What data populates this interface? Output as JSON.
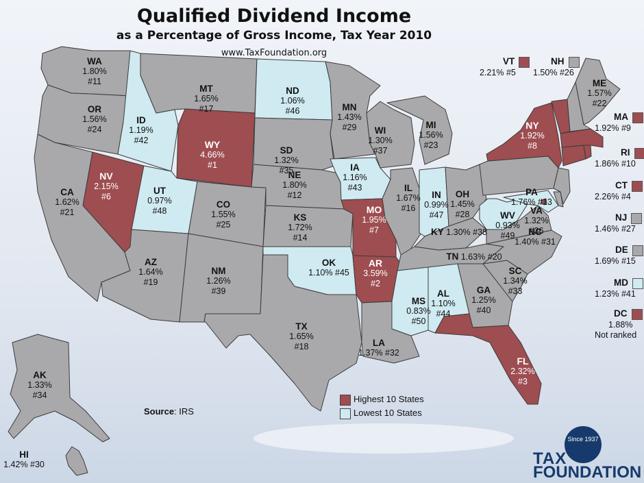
{
  "title": "Qualified Dividend Income",
  "subtitle": "as a Percentage of Gross Income, Tax Year 2010",
  "website": "www.TaxFoundation.org",
  "colors": {
    "highest": "#9e4d51",
    "lowest": "#cfeaf0",
    "neutral": "#a9a9ab",
    "border": "#3b3b3b"
  },
  "legend": {
    "highest": "Highest 10 States",
    "lowest": "Lowest 10 States"
  },
  "source": {
    "label": "Source",
    "value": ": IRS"
  },
  "logo": {
    "line1": "TAX",
    "line2": "FOUNDATION",
    "seal": "Since 1937"
  },
  "states": {
    "WA": {
      "abbr": "WA",
      "pct": "1.80%",
      "rank": "#11",
      "group": "neutral"
    },
    "OR": {
      "abbr": "OR",
      "pct": "1.56%",
      "rank": "#24",
      "group": "neutral"
    },
    "CA": {
      "abbr": "CA",
      "pct": "1.62%",
      "rank": "#21",
      "group": "neutral"
    },
    "NV": {
      "abbr": "NV",
      "pct": "2.15%",
      "rank": "#6",
      "group": "highest"
    },
    "ID": {
      "abbr": "ID",
      "pct": "1.19%",
      "rank": "#42",
      "group": "lowest"
    },
    "MT": {
      "abbr": "MT",
      "pct": "1.65%",
      "rank": "#17",
      "group": "neutral"
    },
    "WY": {
      "abbr": "WY",
      "pct": "4.66%",
      "rank": "#1",
      "group": "highest"
    },
    "UT": {
      "abbr": "UT",
      "pct": "0.97%",
      "rank": "#48",
      "group": "lowest"
    },
    "AZ": {
      "abbr": "AZ",
      "pct": "1.64%",
      "rank": "#19",
      "group": "neutral"
    },
    "CO": {
      "abbr": "CO",
      "pct": "1.55%",
      "rank": "#25",
      "group": "neutral"
    },
    "NM": {
      "abbr": "NM",
      "pct": "1.26%",
      "rank": "#39",
      "group": "neutral"
    },
    "ND": {
      "abbr": "ND",
      "pct": "1.06%",
      "rank": "#46",
      "group": "lowest"
    },
    "SD": {
      "abbr": "SD",
      "pct": "1.32%",
      "rank": "#35",
      "group": "neutral"
    },
    "NE": {
      "abbr": "NE",
      "pct": "1.80%",
      "rank": "#12",
      "group": "neutral"
    },
    "KS": {
      "abbr": "KS",
      "pct": "1.72%",
      "rank": "#14",
      "group": "neutral"
    },
    "OK": {
      "abbr": "OK",
      "pct": "1.10%",
      "rank": "#45",
      "group": "lowest"
    },
    "TX": {
      "abbr": "TX",
      "pct": "1.65%",
      "rank": "#18",
      "group": "neutral"
    },
    "MN": {
      "abbr": "MN",
      "pct": "1.43%",
      "rank": "#29",
      "group": "neutral"
    },
    "IA": {
      "abbr": "IA",
      "pct": "1.16%",
      "rank": "#43",
      "group": "lowest"
    },
    "MO": {
      "abbr": "MO",
      "pct": "1.95%",
      "rank": "#7",
      "group": "highest"
    },
    "AR": {
      "abbr": "AR",
      "pct": "3.59%",
      "rank": "#2",
      "group": "highest"
    },
    "LA": {
      "abbr": "LA",
      "pct": "1.37%",
      "rank": "#32",
      "group": "neutral"
    },
    "WI": {
      "abbr": "WI",
      "pct": "1.30%",
      "rank": "#37",
      "group": "neutral"
    },
    "IL": {
      "abbr": "IL",
      "pct": "1.67%",
      "rank": "#16",
      "group": "neutral"
    },
    "MI": {
      "abbr": "MI",
      "pct": "1.56%",
      "rank": "#23",
      "group": "neutral"
    },
    "IN": {
      "abbr": "IN",
      "pct": "0.99%",
      "rank": "#47",
      "group": "lowest"
    },
    "OH": {
      "abbr": "OH",
      "pct": "1.45%",
      "rank": "#28",
      "group": "neutral"
    },
    "KY": {
      "abbr": "KY",
      "pct": "1.30%",
      "rank": "#38",
      "group": "neutral"
    },
    "TN": {
      "abbr": "TN",
      "pct": "1.63%",
      "rank": "#20",
      "group": "neutral"
    },
    "MS": {
      "abbr": "MS",
      "pct": "0.83%",
      "rank": "#50",
      "group": "lowest"
    },
    "AL": {
      "abbr": "AL",
      "pct": "1.10%",
      "rank": "#44",
      "group": "lowest"
    },
    "GA": {
      "abbr": "GA",
      "pct": "1.25%",
      "rank": "#40",
      "group": "neutral"
    },
    "FL": {
      "abbr": "FL",
      "pct": "2.32%",
      "rank": "#3",
      "group": "highest"
    },
    "SC": {
      "abbr": "SC",
      "pct": "1.34%",
      "rank": "#33",
      "group": "neutral"
    },
    "NC": {
      "abbr": "NC",
      "pct": "1.40%",
      "rank": "#31",
      "group": "neutral"
    },
    "VA": {
      "abbr": "VA",
      "pct": "1.32%",
      "rank": "#36",
      "group": "neutral"
    },
    "WV": {
      "abbr": "WV",
      "pct": "0.93%",
      "rank": "#49",
      "group": "lowest"
    },
    "PA": {
      "abbr": "PA",
      "pct": "1.76%",
      "rank": "#13",
      "group": "neutral"
    },
    "NY": {
      "abbr": "NY",
      "pct": "1.92%",
      "rank": "#8",
      "group": "highest"
    },
    "ME": {
      "abbr": "ME",
      "pct": "1.57%",
      "rank": "#22",
      "group": "neutral"
    },
    "VT": {
      "abbr": "VT",
      "pct": "2.21%",
      "rank": "#5",
      "group": "highest"
    },
    "NH": {
      "abbr": "NH",
      "pct": "1.50%",
      "rank": "#26",
      "group": "neutral"
    },
    "MA": {
      "abbr": "MA",
      "pct": "1.92%",
      "rank": "#9",
      "group": "highest"
    },
    "RI": {
      "abbr": "RI",
      "pct": "1.86%",
      "rank": "#10",
      "group": "highest"
    },
    "CT": {
      "abbr": "CT",
      "pct": "2.26%",
      "rank": "#4",
      "group": "highest"
    },
    "NJ": {
      "abbr": "NJ",
      "pct": "1.46%",
      "rank": "#27",
      "group": "neutral"
    },
    "DE": {
      "abbr": "DE",
      "pct": "1.69%",
      "rank": "#15",
      "group": "neutral"
    },
    "MD": {
      "abbr": "MD",
      "pct": "1.23%",
      "rank": "#41",
      "group": "lowest"
    },
    "DC": {
      "abbr": "DC",
      "pct": "1.88%",
      "rank": "Not ranked",
      "group": "highest"
    },
    "AK": {
      "abbr": "AK",
      "pct": "1.33%",
      "rank": "#34",
      "group": "neutral"
    },
    "HI": {
      "abbr": "HI",
      "pct": "1.42%",
      "rank": "#30",
      "group": "neutral"
    }
  }
}
